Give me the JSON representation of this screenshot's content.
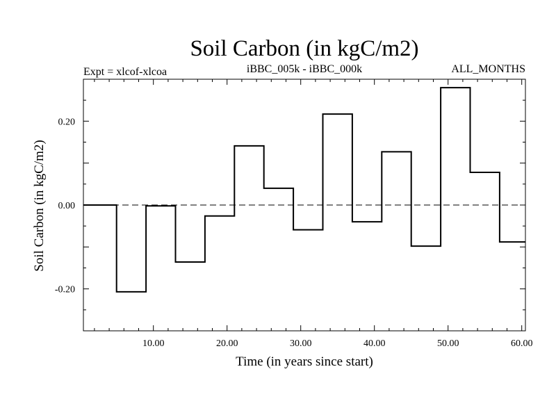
{
  "chart_data": {
    "type": "line",
    "title": "Soil Carbon (in kgC/m2)",
    "subtitle_left": "Expt = xlcof-xlcoa",
    "subtitle_center": "iBBC_005k - iBBC_000k",
    "subtitle_right": "ALL_MONTHS",
    "xlabel": "Time (in years since start)",
    "ylabel": "Soil Carbon (in kgC/m2)",
    "xlim": [
      0.5,
      60.5
    ],
    "ylim": [
      -0.3,
      0.3
    ],
    "x_ticks": [
      10,
      20,
      30,
      40,
      50,
      60
    ],
    "x_tick_labels": [
      "10.00",
      "20.00",
      "30.00",
      "40.00",
      "50.00",
      "60.00"
    ],
    "y_ticks": [
      -0.2,
      0.0,
      0.2
    ],
    "y_tick_labels": [
      "-0.20",
      "0.00",
      "0.20"
    ],
    "zero_line": "dashed",
    "grid": false,
    "series": [
      {
        "step_start": [
          0.5,
          5,
          9,
          13,
          17,
          21,
          25,
          29,
          33,
          37,
          41,
          45,
          49,
          53,
          57
        ],
        "step_end": [
          5,
          9,
          13,
          17,
          21,
          25,
          29,
          33,
          37,
          41,
          45,
          49,
          53,
          57,
          60.5
        ],
        "values": [
          0.0,
          -0.207,
          -0.002,
          -0.136,
          -0.026,
          0.141,
          0.04,
          -0.059,
          0.217,
          -0.04,
          0.127,
          -0.098,
          0.28,
          0.078,
          -0.088
        ]
      }
    ]
  }
}
